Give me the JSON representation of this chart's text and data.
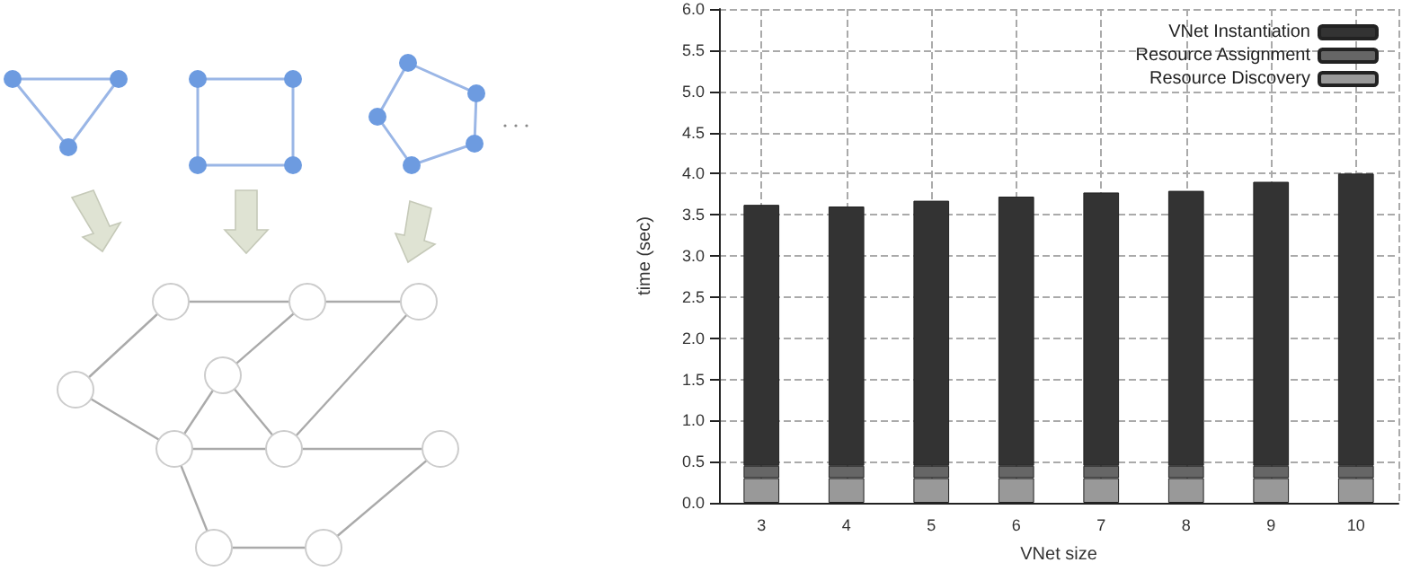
{
  "chart_data": {
    "type": "bar",
    "stacked": true,
    "xlabel": "VNet size",
    "ylabel": "time (sec)",
    "categories": [
      "3",
      "4",
      "5",
      "6",
      "7",
      "8",
      "9",
      "10"
    ],
    "series": [
      {
        "name": "Resource Discovery",
        "color": "#999999",
        "values": [
          0.3,
          0.3,
          0.3,
          0.3,
          0.3,
          0.3,
          0.3,
          0.3
        ]
      },
      {
        "name": "Resource Assignment",
        "color": "#666666",
        "values": [
          0.15,
          0.15,
          0.15,
          0.15,
          0.15,
          0.15,
          0.15,
          0.15
        ]
      },
      {
        "name": "VNet Instantiation",
        "color": "#333333",
        "values": [
          3.17,
          3.15,
          3.22,
          3.27,
          3.32,
          3.34,
          3.45,
          3.55
        ]
      }
    ],
    "ylim": [
      0,
      6
    ],
    "yticks": [
      {
        "value": 0,
        "label": "0.0"
      },
      {
        "value": 0.5,
        "label": "0.5"
      },
      {
        "value": 1,
        "label": "1.0"
      },
      {
        "value": 1.5,
        "label": "1.5"
      },
      {
        "value": 2,
        "label": "2.0"
      },
      {
        "value": 2.5,
        "label": "2.5"
      },
      {
        "value": 3,
        "label": "3.0"
      },
      {
        "value": 3.5,
        "label": "3.5"
      },
      {
        "value": 4,
        "label": "4.0"
      },
      {
        "value": 4.5,
        "label": "4.5"
      },
      {
        "value": 5,
        "label": "5.0"
      },
      {
        "value": 5.5,
        "label": "5.5"
      },
      {
        "value": 6,
        "label": "6.0"
      }
    ],
    "grid": true,
    "legend": "top right"
  }
}
